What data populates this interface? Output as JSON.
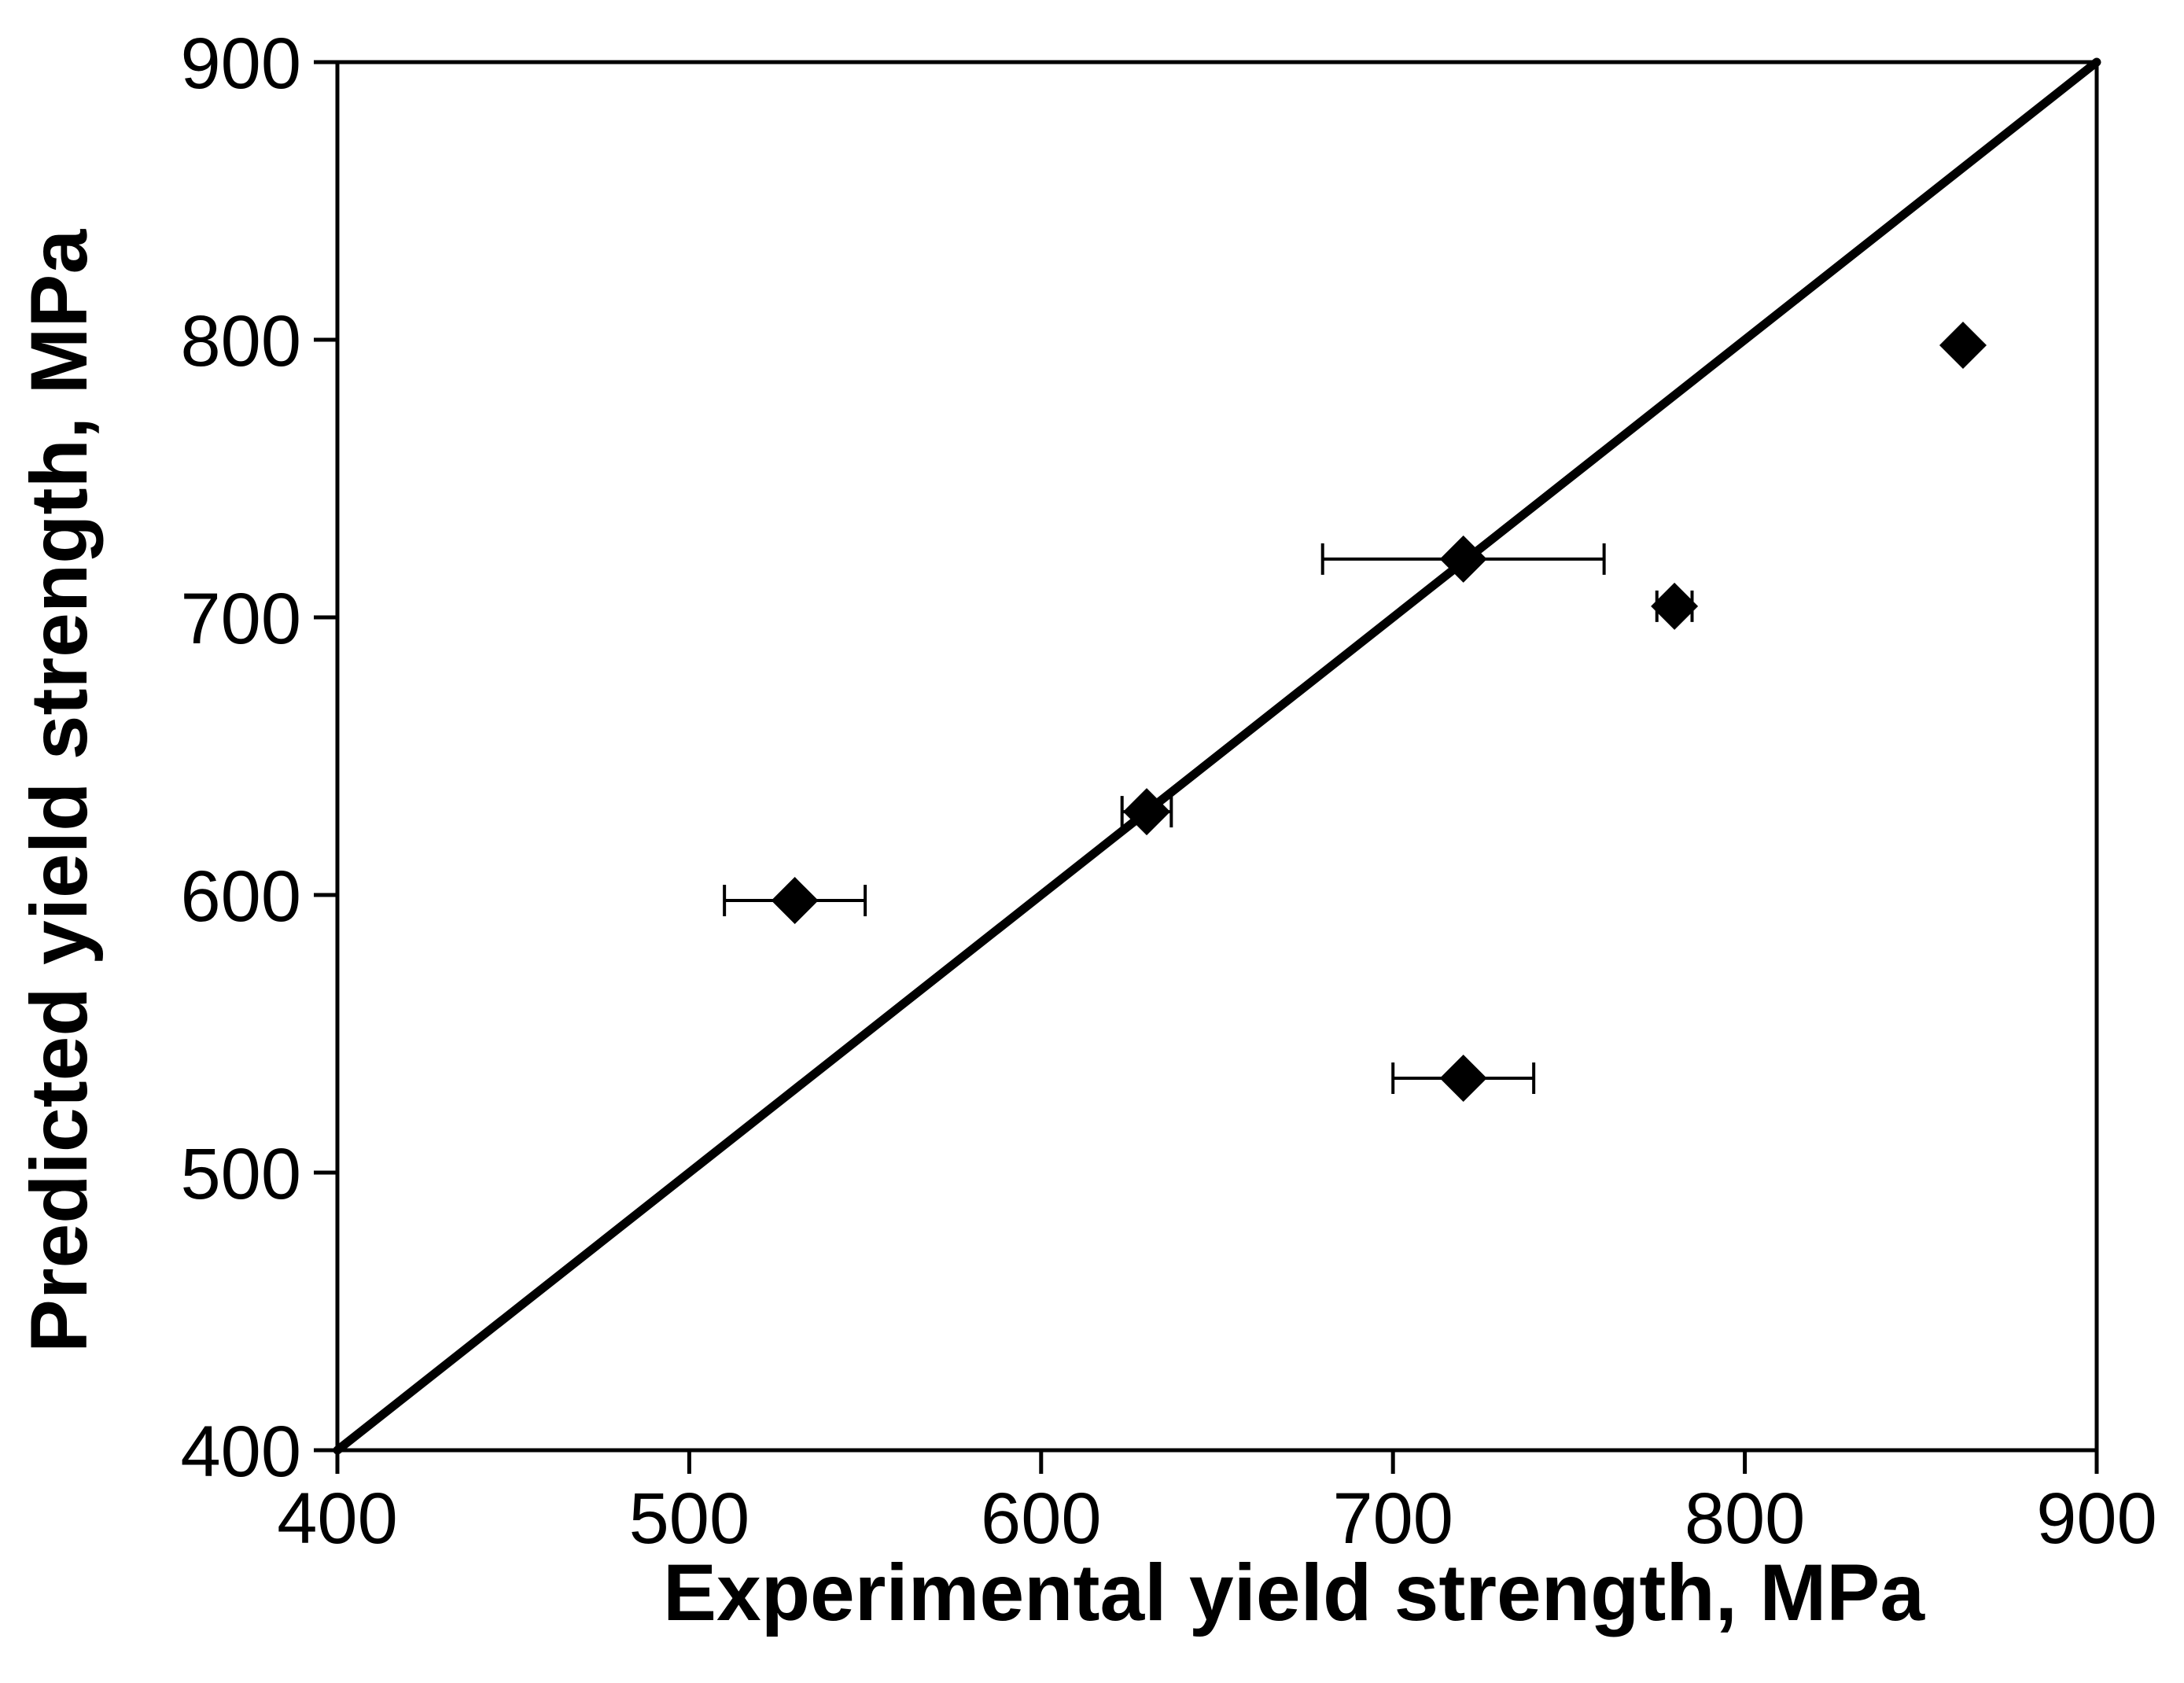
{
  "chart_data": {
    "type": "scatter",
    "title": "",
    "xlabel": "Experimental yield strength, MPa",
    "ylabel": "Predicted yield strength, MPa",
    "xlim": [
      400,
      900
    ],
    "ylim": [
      400,
      900
    ],
    "xticks": [
      "400",
      "500",
      "600",
      "700",
      "800",
      "900"
    ],
    "yticks": [
      "400",
      "500",
      "600",
      "700",
      "800",
      "900"
    ],
    "grid": false,
    "legend": "none",
    "reference_line": {
      "name": "y = x",
      "x": [
        400,
        900
      ],
      "y": [
        400,
        900
      ]
    },
    "series": [
      {
        "name": "data",
        "marker": "diamond",
        "color": "#000000",
        "points": [
          {
            "x": 530,
            "y": 598,
            "x_err": 20
          },
          {
            "x": 630,
            "y": 630,
            "x_err": 7
          },
          {
            "x": 720,
            "y": 721,
            "x_err": 40
          },
          {
            "x": 720,
            "y": 534,
            "x_err": 20
          },
          {
            "x": 780,
            "y": 704,
            "x_err": 5
          },
          {
            "x": 862,
            "y": 798,
            "x_err": 0
          }
        ]
      }
    ]
  }
}
